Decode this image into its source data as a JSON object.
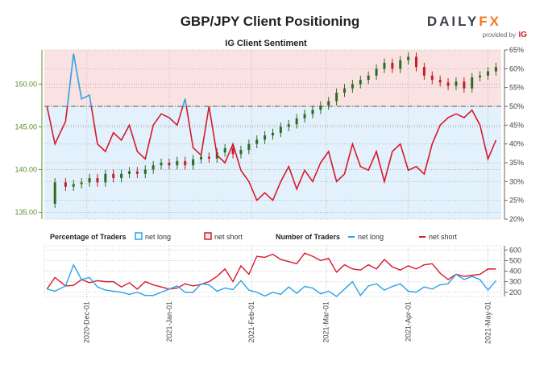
{
  "header": {
    "title": "GBP/JPY Client Positioning",
    "logo_text": "DAILYFX",
    "logo_sub": "provided by",
    "logo_ig": "IG"
  },
  "colors": {
    "long": "#2aa3e8",
    "short": "#d7192b",
    "price_axis": "#5b8c2a",
    "bull": "#2e6b1f",
    "bear": "#c0202a",
    "bg_short": "#fbe2e2",
    "bg_long": "#e2f1fb"
  },
  "chart_data": [
    {
      "type": "line",
      "title": "IG Client Sentiment",
      "left_axis": {
        "ticks": [
          135,
          140,
          145,
          150
        ],
        "labels": [
          "135.00",
          "140.00",
          "145.00",
          "150.00"
        ],
        "range": [
          134.2,
          154.0
        ]
      },
      "right_axis": {
        "ticks": [
          20,
          25,
          30,
          35,
          40,
          45,
          50,
          55,
          60,
          65
        ],
        "labels": [
          "20%",
          "25%",
          "30%",
          "35%",
          "40%",
          "45%",
          "50%",
          "55%",
          "60%",
          "65%"
        ],
        "range": [
          20,
          65
        ]
      },
      "dates": [
        "2020-11-16",
        "2020-11-19",
        "2020-11-23",
        "2020-11-26",
        "2020-11-29",
        "2020-12-02",
        "2020-12-05",
        "2020-12-08",
        "2020-12-11",
        "2020-12-14",
        "2020-12-17",
        "2020-12-20",
        "2020-12-23",
        "2020-12-26",
        "2020-12-29",
        "2021-01-01",
        "2021-01-04",
        "2021-01-07",
        "2021-01-10",
        "2021-01-13",
        "2021-01-16",
        "2021-01-19",
        "2021-01-22",
        "2021-01-25",
        "2021-01-28",
        "2021-01-31",
        "2021-02-03",
        "2021-02-06",
        "2021-02-09",
        "2021-02-12",
        "2021-02-15",
        "2021-02-18",
        "2021-02-21",
        "2021-02-24",
        "2021-02-27",
        "2021-03-02",
        "2021-03-05",
        "2021-03-08",
        "2021-03-11",
        "2021-03-14",
        "2021-03-17",
        "2021-03-20",
        "2021-03-23",
        "2021-03-26",
        "2021-03-29",
        "2021-04-01",
        "2021-04-04",
        "2021-04-07",
        "2021-04-10",
        "2021-04-13",
        "2021-04-16",
        "2021-04-19",
        "2021-04-22",
        "2021-04-25",
        "2021-04-28",
        "2021-05-01",
        "2021-05-04"
      ],
      "price": [
        136,
        138.5,
        138,
        138.3,
        138.5,
        139,
        138.5,
        139.5,
        139,
        139.5,
        139.8,
        139.5,
        140,
        140.5,
        140.8,
        140.5,
        141,
        140.5,
        141.2,
        141.5,
        141.3,
        142,
        142.5,
        141.8,
        142.3,
        143,
        143.5,
        144,
        144.3,
        145,
        145.3,
        146,
        146.5,
        147,
        147.5,
        148,
        149,
        149.5,
        150,
        150.5,
        151,
        151.8,
        152.5,
        151.8,
        152.8,
        153.2,
        152,
        151,
        150.5,
        150.2,
        149.8,
        150.3,
        149.5,
        150.8,
        151,
        151.5,
        152
      ],
      "net_long_pct": [
        50,
        40,
        46,
        64,
        52,
        53,
        40,
        38,
        43,
        41,
        45,
        38,
        36,
        45,
        48,
        47,
        45,
        52,
        39,
        37,
        50,
        37,
        35,
        40,
        33,
        30,
        25,
        27,
        25,
        30,
        34,
        28,
        33,
        30,
        35,
        38,
        30,
        32,
        40,
        34,
        33,
        38,
        30,
        38,
        40,
        33,
        34,
        32,
        40,
        45,
        47,
        48,
        47,
        49,
        45,
        36,
        41
      ],
      "reference_line_pct": 50
    },
    {
      "type": "line",
      "legend": {
        "pct_title": "Percentage of Traders",
        "pct_long": "net long",
        "pct_short": "net short",
        "num_title": "Number of Traders",
        "num_long": "net long",
        "num_short": "net short"
      },
      "y_axis": {
        "ticks": [
          200,
          300,
          400,
          500,
          600
        ],
        "labels": [
          "200",
          "300",
          "400",
          "500",
          "600"
        ],
        "range": [
          160,
          640
        ]
      },
      "x_ticks": [
        "2020-Dec-01",
        "2021-Jan-01",
        "2021-Feb-01",
        "2021-Mar-01",
        "2021-Apr-01",
        "2021-May-01"
      ],
      "x_tick_dates": [
        "2020-12-01",
        "2021-01-01",
        "2021-02-01",
        "2021-03-01",
        "2021-04-01",
        "2021-05-01"
      ],
      "net_short_count": [
        230,
        340,
        260,
        265,
        320,
        290,
        310,
        300,
        300,
        250,
        290,
        230,
        300,
        270,
        250,
        230,
        240,
        280,
        260,
        275,
        300,
        350,
        420,
        300,
        450,
        370,
        540,
        530,
        560,
        510,
        490,
        470,
        570,
        540,
        500,
        520,
        390,
        460,
        420,
        410,
        460,
        420,
        510,
        440,
        410,
        450,
        420,
        460,
        470,
        380,
        320,
        370,
        350,
        360,
        370,
        420,
        420
      ],
      "net_long_count": [
        230,
        210,
        260,
        460,
        320,
        340,
        250,
        220,
        210,
        200,
        180,
        200,
        170,
        170,
        200,
        230,
        260,
        200,
        200,
        280,
        270,
        210,
        240,
        225,
        310,
        220,
        200,
        165,
        200,
        180,
        250,
        190,
        255,
        240,
        185,
        210,
        160,
        230,
        300,
        170,
        260,
        280,
        220,
        255,
        280,
        210,
        200,
        250,
        230,
        270,
        280,
        370,
        320,
        350,
        320,
        220,
        310
      ]
    }
  ]
}
